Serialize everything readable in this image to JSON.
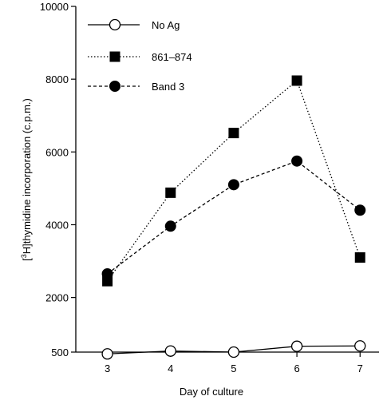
{
  "chart_data": {
    "type": "line",
    "title": "",
    "xlabel": "Day of culture",
    "ylabel": "[3H]thymidine incorporation (c.p.m.)",
    "ylabel_parts": {
      "open": "[",
      "sup": "3",
      "rest": "H]thymidine incorporation (c.p.m.)"
    },
    "x": [
      3,
      4,
      5,
      6,
      7
    ],
    "xlim": [
      2.5,
      7.3
    ],
    "ylim": [
      500,
      10000
    ],
    "yticks": [
      500,
      2000,
      4000,
      6000,
      8000,
      10000
    ],
    "ytick_labels": [
      "500",
      "2000",
      "4000",
      "6000",
      "8000",
      "10000"
    ],
    "xticks": [
      3,
      4,
      5,
      6,
      7
    ],
    "xtick_labels": [
      "3",
      "4",
      "5",
      "6",
      "7"
    ],
    "grid": false,
    "legend_position": "top-left",
    "series": [
      {
        "name": "No Ag",
        "marker": "open-circle",
        "line": "solid",
        "values": [
          450,
          530,
          500,
          660,
          670
        ]
      },
      {
        "name": "861–874",
        "marker": "filled-square",
        "line": "dotted",
        "values": [
          2450,
          4880,
          6520,
          7960,
          3100
        ]
      },
      {
        "name": "Band 3",
        "marker": "filled-circle",
        "line": "dashed",
        "values": [
          2650,
          3960,
          5100,
          5750,
          4400
        ]
      }
    ]
  }
}
